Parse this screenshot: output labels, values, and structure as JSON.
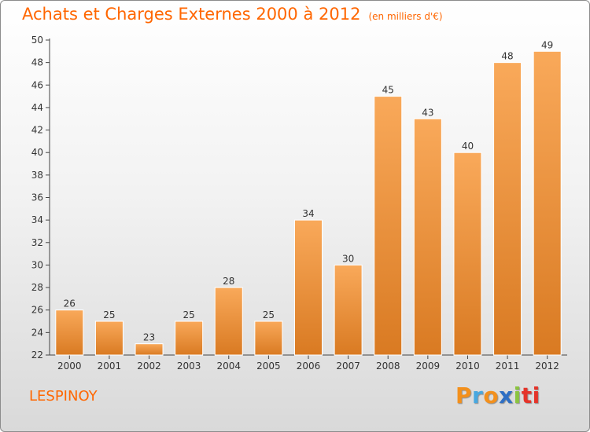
{
  "header": {
    "title": "Achats et Charges Externes 2000 à 2012",
    "unit": "(en milliers d'€)"
  },
  "commune": "LESPINOY",
  "logo": {
    "letters": [
      "P",
      "r",
      "o",
      "x",
      "i",
      "ti"
    ]
  },
  "colors": {
    "accent": "#ff6600",
    "bar_light": "#f9a95a",
    "bar_dark": "#d97a22"
  },
  "chart_data": {
    "type": "bar",
    "title": "Achats et Charges Externes 2000 à 2012",
    "subtitle": "(en milliers d'€)",
    "categories": [
      "2000",
      "2001",
      "2002",
      "2003",
      "2004",
      "2005",
      "2006",
      "2007",
      "2008",
      "2009",
      "2010",
      "2011",
      "2012"
    ],
    "values": [
      26,
      25,
      23,
      25,
      28,
      25,
      34,
      30,
      45,
      43,
      40,
      48,
      49
    ],
    "ylim": [
      22,
      50
    ],
    "yticks": [
      22,
      24,
      26,
      28,
      30,
      32,
      34,
      36,
      38,
      40,
      42,
      44,
      46,
      48,
      50
    ],
    "grid": false,
    "legend": "none"
  }
}
